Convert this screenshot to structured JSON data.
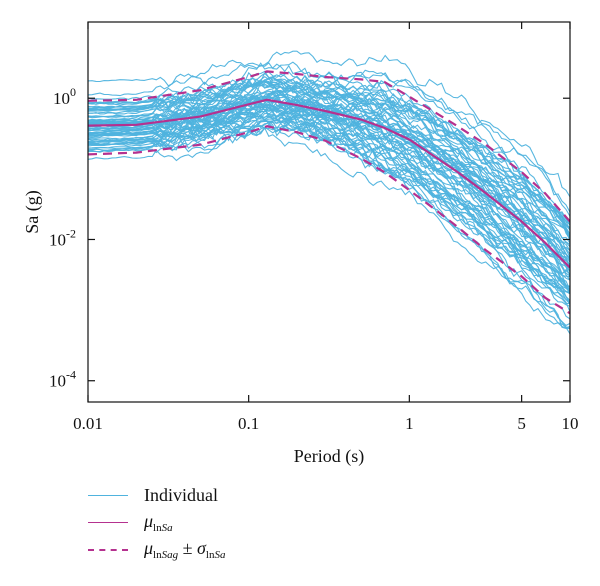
{
  "chart_data": {
    "type": "line",
    "xlabel": "Period (s)",
    "ylabel": "Sa (g)",
    "x_scale": "log",
    "y_scale": "log",
    "xlim": [
      0.01,
      10
    ],
    "ylim": [
      5e-05,
      12
    ],
    "x_ticks": [
      {
        "value": 0.01,
        "label": "0.01"
      },
      {
        "value": 0.1,
        "label": "0.1"
      },
      {
        "value": 1,
        "label": "1"
      },
      {
        "value": 5,
        "label": "5"
      },
      {
        "value": 10,
        "label": "10"
      }
    ],
    "y_ticks": [
      {
        "value": 0.0001,
        "base": "10",
        "exp": "-4"
      },
      {
        "value": 0.01,
        "base": "10",
        "exp": "-2"
      },
      {
        "value": 1,
        "base": "10",
        "exp": "0"
      }
    ],
    "grid": false,
    "legend_position": "bottom-left",
    "colors": {
      "individual": "#4fb3de",
      "mean": "#b5318f",
      "band": "#b5318f"
    },
    "periods": [
      0.01,
      0.02,
      0.05,
      0.1,
      0.13,
      0.2,
      0.3,
      0.5,
      0.7,
      1.0,
      1.5,
      2.0,
      3.0,
      5.0,
      7.0,
      10.0
    ],
    "series": [
      {
        "name": "μlnSa",
        "style": "solid",
        "values": [
          0.41,
          0.42,
          0.55,
          0.82,
          0.95,
          0.8,
          0.66,
          0.5,
          0.38,
          0.26,
          0.14,
          0.09,
          0.045,
          0.018,
          0.009,
          0.004
        ]
      },
      {
        "name": "μlnSag + σlnSa",
        "style": "dashed",
        "values": [
          0.92,
          0.95,
          1.3,
          2.0,
          2.4,
          2.2,
          2.0,
          1.85,
          1.7,
          1.05,
          0.6,
          0.4,
          0.22,
          0.09,
          0.045,
          0.018
        ]
      },
      {
        "name": "μlnSag − σlnSa",
        "style": "dashed",
        "values": [
          0.16,
          0.17,
          0.22,
          0.33,
          0.4,
          0.33,
          0.25,
          0.14,
          0.09,
          0.05,
          0.025,
          0.015,
          0.007,
          0.003,
          0.0015,
          0.0009
        ]
      }
    ],
    "individual": {
      "name": "Individual",
      "count": 70,
      "note": "ensemble of individual spectra between approx 0.00005 and 6 g"
    }
  },
  "legend": {
    "individual_label": "Individual",
    "mean_symbol": "μ",
    "mean_sub": "ln",
    "mean_sub_it": "Sa",
    "band_symbol": "μ",
    "band_sub": "ln",
    "band_sub_it": "Sag",
    "band_pm": " ± ",
    "band_sigma": "σ",
    "band_sigma_sub": "ln",
    "band_sigma_sub_it": "Sa"
  }
}
